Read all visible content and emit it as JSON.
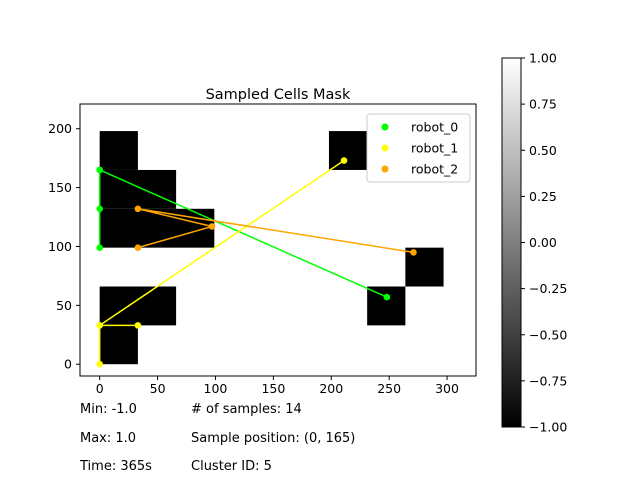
{
  "chart_data": {
    "type": "scatter",
    "title": "Sampled Cells Mask",
    "xlabel": "",
    "ylabel": "",
    "xlim": [
      -17,
      325
    ],
    "ylim": [
      -10,
      221
    ],
    "xticks": [
      0,
      50,
      100,
      150,
      200,
      250,
      300
    ],
    "yticks": [
      0,
      50,
      100,
      150,
      200
    ],
    "grid": false,
    "legend_position": "top-right",
    "mask_cells": [
      {
        "x0": 0,
        "x1": 33,
        "y0": 165,
        "y1": 198
      },
      {
        "x0": 0,
        "x1": 66,
        "y0": 132,
        "y1": 165
      },
      {
        "x0": 0,
        "x1": 99,
        "y0": 99,
        "y1": 132
      },
      {
        "x0": 0,
        "x1": 66,
        "y0": 33,
        "y1": 66
      },
      {
        "x0": 0,
        "x1": 33,
        "y0": 0,
        "y1": 33
      },
      {
        "x0": 198,
        "x1": 231,
        "y0": 165,
        "y1": 198
      },
      {
        "x0": 231,
        "x1": 264,
        "y0": 33,
        "y1": 66
      },
      {
        "x0": 264,
        "x1": 297,
        "y0": 66,
        "y1": 99
      }
    ],
    "series": [
      {
        "name": "robot_0",
        "color": "#00ff00",
        "points": [
          [
            0,
            165
          ],
          [
            0,
            132
          ],
          [
            0,
            99
          ],
          [
            0,
            165
          ],
          [
            248,
            57
          ]
        ],
        "path": [
          [
            0,
            99
          ],
          [
            0,
            165
          ],
          [
            248,
            57
          ]
        ]
      },
      {
        "name": "robot_1",
        "color": "#ffff00",
        "points": [
          [
            0,
            0
          ],
          [
            0,
            33
          ],
          [
            33,
            33
          ],
          [
            211,
            173
          ]
        ],
        "path": [
          [
            0,
            0
          ],
          [
            0,
            33
          ],
          [
            33,
            33
          ],
          [
            0,
            33
          ],
          [
            211,
            173
          ]
        ]
      },
      {
        "name": "robot_2",
        "color": "#ffa500",
        "points": [
          [
            33,
            132
          ],
          [
            33,
            99
          ],
          [
            97,
            117
          ],
          [
            271,
            95
          ]
        ],
        "path": [
          [
            33,
            99
          ],
          [
            97,
            117
          ],
          [
            33,
            132
          ],
          [
            271,
            95
          ]
        ]
      }
    ],
    "colorbar": {
      "min": -1.0,
      "max": 1.0,
      "ticks": [
        1.0,
        0.75,
        0.5,
        0.25,
        0.0,
        -0.25,
        -0.5,
        -0.75,
        -1.0
      ],
      "tick_labels": [
        "1.00",
        "0.75",
        "0.50",
        "0.25",
        "0.00",
        "−0.25",
        "−0.50",
        "−0.75",
        "−1.00"
      ],
      "colormap": "gray"
    }
  },
  "info": {
    "min": "Min: -1.0",
    "max": "Max: 1.0",
    "time": "Time: 365s",
    "samples": "# of samples: 14",
    "sample_position": "Sample position: (0, 165)",
    "cluster_id": "Cluster ID: 5"
  }
}
